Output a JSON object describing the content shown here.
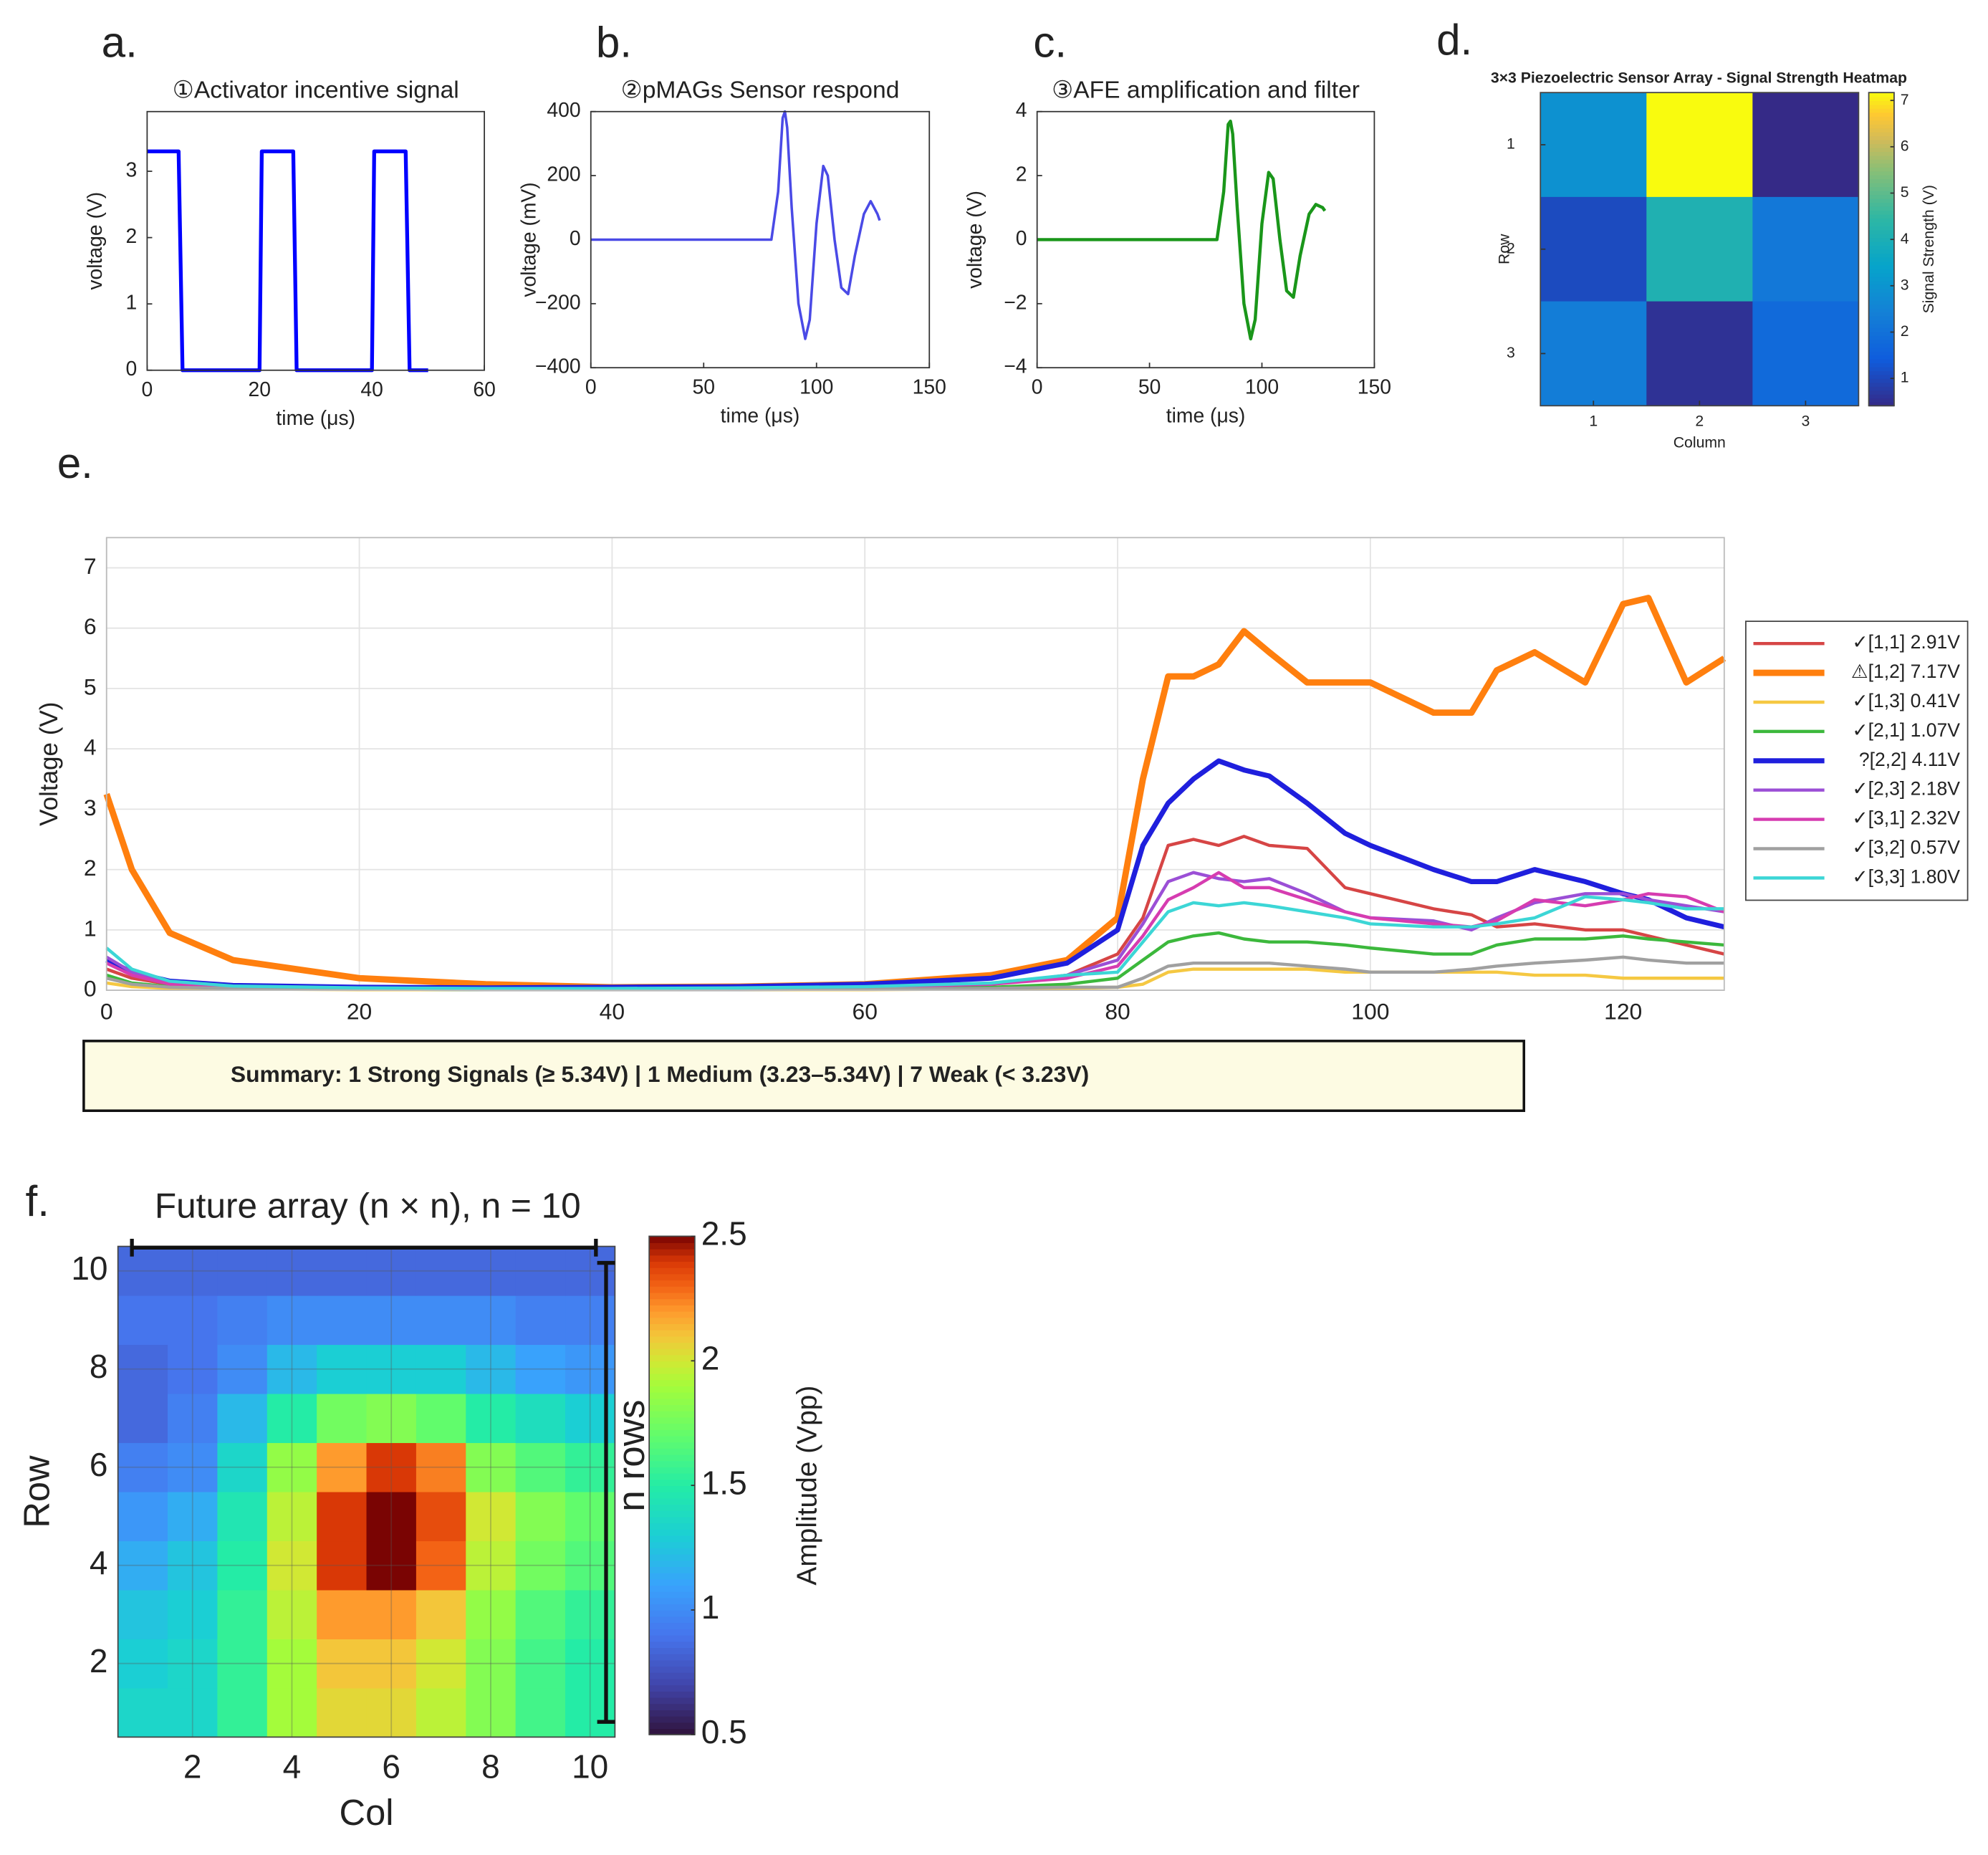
{
  "chart_data": [
    {
      "type": "line",
      "panel": "a.",
      "title": "①Activator incentive signal",
      "xlabel": "time (μs)",
      "ylabel": "voltage (V)",
      "xlim": [
        0,
        60
      ],
      "xticks": [
        0,
        20,
        40,
        60
      ],
      "ylim": [
        0,
        3.9
      ],
      "yticks": [
        0,
        1,
        2,
        3
      ],
      "grid": false,
      "x": [
        0,
        5.6,
        6.3,
        20,
        20.4,
        26,
        26.6,
        40,
        40.4,
        46,
        46.7,
        50
      ],
      "series": [
        {
          "color": "#0000ff",
          "linewidth": 3,
          "values": [
            3.3,
            3.3,
            0,
            0,
            3.3,
            3.3,
            0,
            0,
            3.3,
            3.3,
            0,
            0
          ]
        }
      ]
    },
    {
      "type": "line",
      "panel": "b.",
      "title": "②pMAGs Sensor respond",
      "xlabel": "time (μs)",
      "ylabel": "voltage (mV)",
      "xlim": [
        0,
        150
      ],
      "xticks": [
        0,
        50,
        100,
        150
      ],
      "ylim": [
        -400,
        400
      ],
      "yticks": [
        {
          "value": -400,
          "label": "−400"
        },
        {
          "value": -200,
          "label": "−200"
        },
        0,
        200,
        400
      ],
      "grid": false,
      "x": [
        0,
        80,
        83,
        85,
        86,
        87,
        89,
        92,
        95,
        97,
        100,
        103,
        105,
        108,
        111,
        114,
        117,
        121,
        124,
        127,
        128
      ],
      "series": [
        {
          "color": "#4a4ae6",
          "linewidth": 2,
          "values": [
            0,
            0,
            150,
            380,
            400,
            350,
            100,
            -200,
            -310,
            -250,
            50,
            230,
            200,
            0,
            -150,
            -170,
            -50,
            80,
            120,
            80,
            60
          ]
        }
      ]
    },
    {
      "type": "line",
      "panel": "c.",
      "title": "③AFE amplification and filter",
      "xlabel": "time (μs)",
      "ylabel": "voltage (V)",
      "xlim": [
        0,
        150
      ],
      "xticks": [
        0,
        50,
        100,
        150
      ],
      "ylim": [
        -4,
        4
      ],
      "yticks": [
        {
          "value": -4,
          "label": "−4"
        },
        {
          "value": -2,
          "label": "−2"
        },
        0,
        2,
        4
      ],
      "grid": false,
      "x": [
        0,
        80,
        83,
        85,
        86,
        87,
        89,
        92,
        95,
        97,
        100,
        103,
        105,
        108,
        111,
        114,
        117,
        121,
        124,
        127,
        128
      ],
      "series": [
        {
          "color": "#1a961a",
          "linewidth": 2.5,
          "values": [
            0,
            0,
            1.5,
            3.6,
            3.7,
            3.3,
            1.0,
            -2.0,
            -3.1,
            -2.5,
            0.5,
            2.1,
            1.9,
            0,
            -1.6,
            -1.8,
            -0.5,
            0.8,
            1.1,
            1.0,
            0.9
          ]
        }
      ]
    },
    {
      "type": "heatmap",
      "panel": "d.",
      "title": "3×3 Piezoelectric Sensor Array - Signal Strength Heatmap",
      "xlabel": "Column",
      "ylabel": "Row",
      "colorbar_label": "Signal Strength (V)",
      "colormap": "parula",
      "y_direction": "reverse",
      "grid": false,
      "xlim": [
        0.5,
        3.5
      ],
      "ylim": [
        0.5,
        3.5
      ],
      "xticks": [
        1,
        2,
        3
      ],
      "yticks": [
        1,
        2,
        3
      ],
      "clim": [
        0.41,
        7.17
      ],
      "cticks": [
        1,
        2,
        3,
        4,
        5,
        6,
        7
      ],
      "values": [
        [
          2.91,
          7.17,
          0.41
        ],
        [
          1.07,
          4.11,
          2.18
        ],
        [
          2.32,
          0.57,
          1.8
        ]
      ]
    },
    {
      "type": "line",
      "panel": "e.",
      "ylabel": "Voltage (V)",
      "legend": "right",
      "grid": true,
      "xlim": [
        0,
        128
      ],
      "xticks": [
        0,
        20,
        40,
        60,
        80,
        100,
        120
      ],
      "ylim": [
        0,
        7.5
      ],
      "yticks": [
        0,
        1,
        2,
        3,
        4,
        5,
        6,
        7
      ],
      "annotation": "Summary:  1 Strong Signals (≥ 5.34V)  | 1 Medium (3.23–5.34V) | 7 Weak (< 3.23V)",
      "x": [
        0,
        2,
        5,
        10,
        20,
        30,
        40,
        50,
        60,
        70,
        76,
        80,
        82,
        84,
        86,
        88,
        90,
        92,
        95,
        98,
        100,
        105,
        108,
        110,
        113,
        117,
        120,
        122,
        125,
        128
      ],
      "series": [
        {
          "name": "✓[1,1] 2.91V",
          "color": "#d64545",
          "linewidth": 2.5,
          "values": [
            0.35,
            0.2,
            0.1,
            0.05,
            0.03,
            0.02,
            0.02,
            0.03,
            0.05,
            0.1,
            0.25,
            0.6,
            1.2,
            2.4,
            2.5,
            2.4,
            2.55,
            2.4,
            2.35,
            1.7,
            1.6,
            1.35,
            1.25,
            1.05,
            1.1,
            1.0,
            1.0,
            0.9,
            0.75,
            0.6
          ]
        },
        {
          "name": "⚠[1,2] 7.17V",
          "color": "#ff7f0e",
          "linewidth": 5,
          "values": [
            3.25,
            2.0,
            0.95,
            0.5,
            0.2,
            0.1,
            0.05,
            0.06,
            0.1,
            0.25,
            0.5,
            1.2,
            3.5,
            5.2,
            5.2,
            5.4,
            5.95,
            5.6,
            5.1,
            5.1,
            5.1,
            4.6,
            4.6,
            5.3,
            5.6,
            5.1,
            6.4,
            6.5,
            5.1,
            5.5
          ]
        },
        {
          "name": "✓[1,3] 0.41V",
          "color": "#f5c842",
          "linewidth": 2.5,
          "values": [
            0.12,
            0.06,
            0.03,
            0.02,
            0.01,
            0.01,
            0.01,
            0.01,
            0.01,
            0.02,
            0.03,
            0.05,
            0.1,
            0.3,
            0.35,
            0.35,
            0.35,
            0.35,
            0.35,
            0.3,
            0.3,
            0.3,
            0.3,
            0.3,
            0.25,
            0.25,
            0.2,
            0.2,
            0.2,
            0.2
          ]
        },
        {
          "name": "✓[2,1] 1.07V",
          "color": "#3cb83c",
          "linewidth": 2.5,
          "values": [
            0.25,
            0.12,
            0.06,
            0.03,
            0.02,
            0.01,
            0.01,
            0.02,
            0.03,
            0.05,
            0.1,
            0.2,
            0.5,
            0.8,
            0.9,
            0.95,
            0.85,
            0.8,
            0.8,
            0.75,
            0.7,
            0.6,
            0.6,
            0.75,
            0.85,
            0.85,
            0.9,
            0.85,
            0.8,
            0.75
          ]
        },
        {
          "name": "?[2,2] 4.11V",
          "color": "#1f1fdd",
          "linewidth": 4,
          "values": [
            0.5,
            0.3,
            0.15,
            0.08,
            0.05,
            0.04,
            0.05,
            0.06,
            0.1,
            0.2,
            0.45,
            1.0,
            2.4,
            3.1,
            3.5,
            3.8,
            3.65,
            3.55,
            3.1,
            2.6,
            2.4,
            2.0,
            1.8,
            1.8,
            2.0,
            1.8,
            1.6,
            1.5,
            1.2,
            1.05
          ]
        },
        {
          "name": "✓[2,3] 2.18V",
          "color": "#9b4fd6",
          "linewidth": 2.5,
          "values": [
            0.55,
            0.3,
            0.12,
            0.06,
            0.03,
            0.02,
            0.02,
            0.03,
            0.05,
            0.1,
            0.25,
            0.5,
            1.1,
            1.8,
            1.95,
            1.85,
            1.8,
            1.85,
            1.6,
            1.3,
            1.2,
            1.15,
            1.0,
            1.2,
            1.45,
            1.6,
            1.6,
            1.5,
            1.4,
            1.3
          ]
        },
        {
          "name": "✓[3,1] 2.32V",
          "color": "#d63cb0",
          "linewidth": 2.5,
          "values": [
            0.45,
            0.25,
            0.1,
            0.05,
            0.03,
            0.02,
            0.02,
            0.03,
            0.05,
            0.1,
            0.2,
            0.4,
            0.9,
            1.5,
            1.7,
            1.95,
            1.7,
            1.7,
            1.5,
            1.3,
            1.2,
            1.1,
            1.05,
            1.15,
            1.5,
            1.4,
            1.5,
            1.6,
            1.55,
            1.3
          ]
        },
        {
          "name": "✓[3,2] 0.57V",
          "color": "#a0a0a0",
          "linewidth": 2.5,
          "values": [
            0.2,
            0.1,
            0.05,
            0.03,
            0.02,
            0.01,
            0.01,
            0.01,
            0.02,
            0.03,
            0.05,
            0.05,
            0.2,
            0.4,
            0.45,
            0.45,
            0.45,
            0.45,
            0.4,
            0.35,
            0.3,
            0.3,
            0.35,
            0.4,
            0.45,
            0.5,
            0.55,
            0.5,
            0.45,
            0.45
          ]
        },
        {
          "name": "✓[3,3] 1.80V",
          "color": "#3cd6d6",
          "linewidth": 2.5,
          "values": [
            0.7,
            0.35,
            0.15,
            0.07,
            0.04,
            0.03,
            0.03,
            0.04,
            0.06,
            0.12,
            0.25,
            0.3,
            0.8,
            1.3,
            1.45,
            1.4,
            1.45,
            1.4,
            1.3,
            1.2,
            1.1,
            1.05,
            1.05,
            1.1,
            1.2,
            1.55,
            1.5,
            1.45,
            1.35,
            1.35
          ]
        }
      ]
    },
    {
      "type": "heatmap",
      "panel": "f.",
      "title": "Future array  (n × n),  n = 10",
      "xlabel": "Col",
      "ylabel": "Row",
      "colorbar_label": "Amplitude (Vpp)",
      "colormap": "turbo",
      "y_direction": "normal",
      "grid": true,
      "annotation": "n rows",
      "xlim": [
        0.5,
        10.5
      ],
      "ylim": [
        0.5,
        10.5
      ],
      "xticks": [
        2,
        4,
        6,
        8,
        10
      ],
      "yticks": [
        2,
        4,
        6,
        8,
        10
      ],
      "clim": [
        0.5,
        2.5
      ],
      "cticks": [
        0.5,
        1,
        1.5,
        2,
        2.5
      ],
      "values": [
        [
          1.35,
          1.35,
          1.55,
          1.9,
          2.05,
          2.05,
          1.95,
          1.8,
          1.6,
          1.5
        ],
        [
          1.3,
          1.35,
          1.55,
          1.9,
          2.1,
          2.1,
          2.0,
          1.8,
          1.6,
          1.5
        ],
        [
          1.25,
          1.3,
          1.55,
          1.95,
          2.2,
          2.2,
          2.1,
          1.85,
          1.65,
          1.55
        ],
        [
          1.15,
          1.25,
          1.5,
          2.0,
          2.4,
          2.5,
          2.3,
          1.95,
          1.75,
          1.65
        ],
        [
          1.05,
          1.15,
          1.45,
          1.95,
          2.4,
          2.5,
          2.35,
          2.0,
          1.8,
          1.7
        ],
        [
          0.95,
          1.0,
          1.35,
          1.85,
          2.2,
          2.4,
          2.25,
          1.8,
          1.65,
          1.55
        ],
        [
          0.85,
          0.95,
          1.2,
          1.5,
          1.75,
          1.8,
          1.7,
          1.5,
          1.4,
          1.3
        ],
        [
          0.85,
          0.9,
          1.0,
          1.2,
          1.3,
          1.3,
          1.3,
          1.2,
          1.1,
          1.05
        ],
        [
          0.9,
          0.9,
          0.95,
          1.0,
          1.0,
          1.0,
          1.0,
          1.0,
          0.95,
          0.95
        ],
        [
          0.85,
          0.85,
          0.85,
          0.85,
          0.85,
          0.85,
          0.85,
          0.85,
          0.85,
          0.85
        ]
      ]
    }
  ]
}
